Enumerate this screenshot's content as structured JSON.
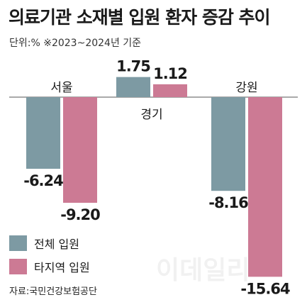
{
  "title": "의료기관 소재별 입원 환자 증감 추이",
  "subtitle": "단위:%  ※2023~2024년 기준",
  "source": "자료:국민건강보험공단",
  "watermark": "이데일리",
  "colors": {
    "total": "#7d9aa3",
    "other_region": "#cc7a94",
    "axis": "#555555"
  },
  "chart_data": {
    "type": "bar",
    "categories": [
      "서울",
      "경기",
      "강원"
    ],
    "series": [
      {
        "name": "전체 입원",
        "values": [
          -6.24,
          1.75,
          -8.16
        ]
      },
      {
        "name": "타지역 입원",
        "values": [
          -9.2,
          1.12,
          -15.64
        ]
      }
    ],
    "value_labels": [
      [
        "-6.24",
        "1.75",
        "-8.16"
      ],
      [
        "-9.20",
        "1.12",
        "-15.64"
      ]
    ],
    "ylim": [
      -15.64,
      1.75
    ],
    "legend_position": "bottom-left",
    "grid": false
  }
}
